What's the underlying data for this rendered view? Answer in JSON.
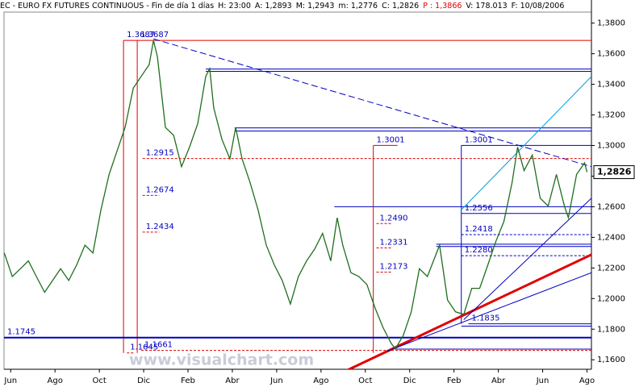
{
  "chart_data": {
    "type": "line",
    "title": "EC - EURO FX FUTURES CONTINUOUS - Fin de día 1 días",
    "info": [
      {
        "text": "H: 23:00",
        "color": "#000000"
      },
      {
        "text": "A: 1,2893",
        "color": "#000000"
      },
      {
        "text": "M: 1,2943",
        "color": "#000000"
      },
      {
        "text": "m: 1,2776",
        "color": "#000000"
      },
      {
        "text": "C: 1,2826",
        "color": "#000000"
      },
      {
        "text": "P : 1,3866",
        "color": "#e00000"
      },
      {
        "text": "V: 178.013",
        "color": "#000000"
      },
      {
        "text": "F: 10/08/2006",
        "color": "#000000"
      }
    ],
    "watermark": "www.visualchart.com",
    "x": [
      -0.29,
      0.07,
      0.44,
      0.8,
      1.16,
      1.53,
      1.89,
      2.25,
      2.62,
      2.98,
      3.35,
      3.71,
      4.07,
      4.44,
      4.8,
      5.16,
      5.53,
      5.89,
      6.25,
      6.44,
      6.62,
      6.98,
      7.35,
      7.71,
      8.07,
      8.44,
      8.8,
      8.98,
      9.16,
      9.53,
      9.89,
      10.15,
      10.44,
      10.8,
      11.16,
      11.53,
      11.89,
      12.25,
      12.62,
      12.98,
      13.35,
      13.71,
      14.07,
      14.44,
      14.73,
      14.98,
      15.35,
      15.71,
      16.07,
      16.44,
      16.8,
      17.16,
      17.35,
      17.71,
      18.07,
      18.44,
      18.8,
      19.35,
      19.71,
      20.07,
      20.44,
      20.8,
      21.16,
      21.53,
      21.89,
      22.25,
      22.62,
      22.87,
      23.16,
      23.53,
      23.89,
      24.25,
      24.62,
      24.98,
      25.16,
      25.53,
      25.89,
      26.0
    ],
    "series": [
      {
        "color": "#1f6e1f",
        "values": [
          1.2298,
          1.2144,
          1.2195,
          1.2246,
          1.2144,
          1.2041,
          1.2118,
          1.2195,
          1.2118,
          1.2221,
          1.2349,
          1.2298,
          1.258,
          1.2811,
          1.2965,
          1.3118,
          1.3375,
          1.3452,
          1.3529,
          1.3687,
          1.358,
          1.3118,
          1.3067,
          1.2862,
          1.299,
          1.3144,
          1.3452,
          1.3503,
          1.3246,
          1.3041,
          1.2913,
          1.3118,
          1.2913,
          1.2759,
          1.258,
          1.2349,
          1.2221,
          1.2118,
          1.1964,
          1.2144,
          1.2246,
          1.2323,
          1.2426,
          1.2246,
          1.2528,
          1.2349,
          1.2169,
          1.2144,
          1.2092,
          1.1938,
          1.181,
          1.1708,
          1.1672,
          1.1759,
          1.1913,
          1.2195,
          1.2144,
          1.2349,
          1.199,
          1.1913,
          1.1897,
          1.2067,
          1.2067,
          1.2221,
          1.2374,
          1.2503,
          1.2759,
          1.299,
          1.2836,
          1.2938,
          1.2656,
          1.2605,
          1.2811,
          1.2605,
          1.2528,
          1.2811,
          1.2887,
          1.2826
        ]
      }
    ],
    "last_price": {
      "value": 1.2826,
      "label": "1,2826"
    },
    "xlim": [
      -0.3,
      26.2
    ],
    "xticks": [
      {
        "value": 0,
        "label": "Jun"
      },
      {
        "value": 2,
        "label": "Ago"
      },
      {
        "value": 4,
        "label": "Oct"
      },
      {
        "value": 6,
        "label": "Dic"
      },
      {
        "value": 8,
        "label": "Feb"
      },
      {
        "value": 10,
        "label": "Abr"
      },
      {
        "value": 12,
        "label": "Jun"
      },
      {
        "value": 14,
        "label": "Ago"
      },
      {
        "value": 16,
        "label": "Oct"
      },
      {
        "value": 18,
        "label": "Dic"
      },
      {
        "value": 20,
        "label": "Feb"
      },
      {
        "value": 22,
        "label": "Abr"
      },
      {
        "value": 24,
        "label": "Jun"
      },
      {
        "value": 26,
        "label": "Ago"
      }
    ],
    "ylim": [
      1.1538,
      1.3872
    ],
    "yticks": [
      {
        "value": 1.16,
        "label": "1,1600"
      },
      {
        "value": 1.18,
        "label": "1,1800"
      },
      {
        "value": 1.2,
        "label": "1,2000"
      },
      {
        "value": 1.22,
        "label": "1,2200"
      },
      {
        "value": 1.24,
        "label": "1,2400"
      },
      {
        "value": 1.26,
        "label": "1,2600"
      },
      {
        "value": 1.28,
        "label": "1,2800"
      },
      {
        "value": 1.3,
        "label": "1,3000"
      },
      {
        "value": 1.32,
        "label": "1,3200"
      },
      {
        "value": 1.34,
        "label": "1,3400"
      },
      {
        "value": 1.36,
        "label": "1,3600"
      },
      {
        "value": 1.38,
        "label": "1,3800"
      }
    ],
    "levels": [
      {
        "value": 1.3687,
        "label": "1.3687",
        "x0": 5.09,
        "x1": 26.2,
        "color": "#e00000",
        "dash": false
      },
      {
        "value": 1.3687,
        "label": "1.3687",
        "x0": 5.71,
        "x1": 5.71,
        "color": "#e00000",
        "dash": false
      },
      {
        "value": 1.2915,
        "label": "1.2915",
        "x0": 5.95,
        "x1": 26.2,
        "color": "#e00000",
        "dash": true
      },
      {
        "value": 1.2674,
        "label": "1.2674",
        "x0": 5.95,
        "x1": 6.7,
        "color": "#e00000",
        "dash": true
      },
      {
        "value": 1.2434,
        "label": "1.2434",
        "x0": 5.95,
        "x1": 6.7,
        "color": "#e00000",
        "dash": true
      },
      {
        "value": 1.1645,
        "label": "1.1645",
        "x0": 5.24,
        "x1": 5.6,
        "color": "#e00000",
        "dash": true
      },
      {
        "value": 1.1661,
        "label": "1.1661",
        "x0": 5.89,
        "x1": 26.2,
        "color": "#e00000",
        "dash": true
      },
      {
        "value": 1.1745,
        "label": "1.1745",
        "x0": -0.3,
        "x1": 26.2,
        "color": "#0000c0",
        "dash": false
      },
      {
        "value": 1.3001,
        "label": "1.3001",
        "x0": 16.36,
        "x1": 17.45,
        "color": "#e00000",
        "dash": false
      },
      {
        "value": 1.249,
        "label": "1.2490",
        "x0": 16.5,
        "x1": 17.2,
        "color": "#e00000",
        "dash": true
      },
      {
        "value": 1.2331,
        "label": "1.2331",
        "x0": 16.5,
        "x1": 17.2,
        "color": "#e00000",
        "dash": true
      },
      {
        "value": 1.2173,
        "label": "1.2173",
        "x0": 16.5,
        "x1": 17.2,
        "color": "#e00000",
        "dash": true
      },
      {
        "value": 1.3001,
        "label": "1.3001",
        "x0": 20.33,
        "x1": 26.2,
        "color": "#0000c0",
        "dash": false
      },
      {
        "value": 1.2556,
        "label": "1.2556",
        "x0": 20.33,
        "x1": 26.2,
        "color": "#0000c0",
        "dash": false
      },
      {
        "value": 1.2418,
        "label": "1.2418",
        "x0": 20.33,
        "x1": 26.2,
        "color": "#0000c0",
        "dash": true
      },
      {
        "value": 1.228,
        "label": "1.2280",
        "x0": 20.33,
        "x1": 26.2,
        "color": "#0000c0",
        "dash": true
      },
      {
        "value": 1.1835,
        "label": "1.1835",
        "x0": 20.65,
        "x1": 26.2,
        "color": "#0000c0",
        "dash": false
      }
    ],
    "lines": [
      {
        "value": 1.35,
        "x0": 8.8,
        "x1": 26.2,
        "color": "#0000c0"
      },
      {
        "value": 1.3485,
        "x0": 8.8,
        "x1": 26.2,
        "color": "#0000c0"
      },
      {
        "value": 1.3115,
        "x0": 10.1,
        "x1": 26.2,
        "color": "#0000c0"
      },
      {
        "value": 1.3095,
        "x0": 10.1,
        "x1": 26.2,
        "color": "#0000c0"
      },
      {
        "value": 1.26,
        "x0": 14.6,
        "x1": 26.2,
        "color": "#0000c0"
      },
      {
        "value": 1.2355,
        "x0": 19.2,
        "x1": 26.2,
        "color": "#0000c0"
      },
      {
        "value": 1.234,
        "x0": 19.2,
        "x1": 26.2,
        "color": "#0000c0"
      },
      {
        "value": 1.182,
        "x0": 20.33,
        "x1": 26.2,
        "color": "#0000c0"
      },
      {
        "value": 1.167,
        "x0": 17.35,
        "x1": 26.2,
        "color": "#0000c0"
      }
    ],
    "vlines": [
      {
        "x": 5.09,
        "y0": 1.1645,
        "y1": 1.3687,
        "color": "#e00000"
      },
      {
        "x": 5.71,
        "y0": 1.1645,
        "y1": 1.3687,
        "color": "#e00000"
      },
      {
        "x": 16.36,
        "y0": 1.1645,
        "y1": 1.3001,
        "color": "#e00000"
      },
      {
        "x": 20.33,
        "y0": 1.1835,
        "y1": 1.3001,
        "color": "#0000c0"
      }
    ],
    "trends": [
      {
        "x": [
          6.44,
          26.2
        ],
        "y": [
          1.3697,
          1.2862
        ],
        "color": "#0000c0",
        "dash": true,
        "width": 1
      },
      {
        "x": [
          20.33,
          26.2
        ],
        "y": [
          1.258,
          1.3451
        ],
        "color": "#00a0e0",
        "dash": false,
        "width": 1
      },
      {
        "x": [
          14.98,
          26.2
        ],
        "y": [
          1.1518,
          1.2287
        ],
        "color": "#e00000",
        "dash": false,
        "width": 3
      },
      {
        "x": [
          16.98,
          26.2
        ],
        "y": [
          1.1656,
          1.2169
        ],
        "color": "#0000c0",
        "dash": false,
        "width": 1
      },
      {
        "x": [
          20.44,
          26.2
        ],
        "y": [
          1.1862,
          1.2656
        ],
        "color": "#0000c0",
        "dash": false,
        "width": 1
      }
    ]
  }
}
